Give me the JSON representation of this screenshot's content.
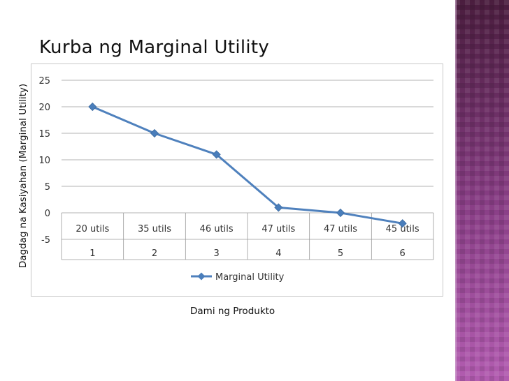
{
  "chart_data": {
    "type": "line",
    "title": "Kurba ng Marginal Utility",
    "xlabel": "Dami ng Produkto",
    "ylabel": "Dagdag na Kasiyahan (Marginal Utility)",
    "categories": [
      "1",
      "2",
      "3",
      "4",
      "5",
      "6"
    ],
    "category_sublabels": [
      "20 utils",
      "35 utils",
      "46 utils",
      "47 utils",
      "47 utils",
      "45 utils"
    ],
    "series": [
      {
        "name": "Marginal Utility",
        "values": [
          20,
          15,
          11,
          1,
          0,
          -2
        ]
      }
    ],
    "ylim": [
      -5,
      25
    ],
    "yticks": [
      "25",
      "20",
      "15",
      "10",
      "5",
      "0",
      "-5"
    ],
    "grid": true,
    "legend": "bottom",
    "colors": {
      "line": "#4f81bd",
      "marker": "#4a7ebb",
      "side_bar": "#a64ca6"
    }
  }
}
